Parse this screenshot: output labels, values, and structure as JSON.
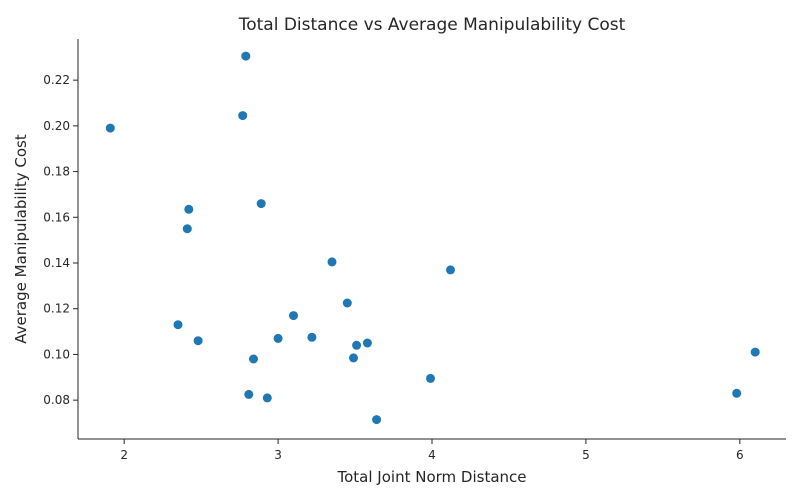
{
  "chart_data": {
    "type": "scatter",
    "title": "Total Distance vs Average Manipulability Cost",
    "xlabel": "Total Joint Norm Distance",
    "ylabel": "Average Manipulability Cost",
    "xlim": [
      1.7,
      6.3
    ],
    "ylim": [
      0.063,
      0.238
    ],
    "xticks": [
      2,
      3,
      4,
      5,
      6
    ],
    "xtick_labels": [
      "2",
      "3",
      "4",
      "5",
      "6"
    ],
    "yticks": [
      0.08,
      0.1,
      0.12,
      0.14,
      0.16,
      0.18,
      0.2,
      0.22
    ],
    "ytick_labels": [
      "0.08",
      "0.10",
      "0.12",
      "0.14",
      "0.16",
      "0.18",
      "0.20",
      "0.22"
    ],
    "grid": false,
    "point_color": "#1f77b4",
    "points": [
      {
        "x": 1.91,
        "y": 0.199
      },
      {
        "x": 2.79,
        "y": 0.2305
      },
      {
        "x": 2.77,
        "y": 0.2045
      },
      {
        "x": 2.89,
        "y": 0.166
      },
      {
        "x": 2.42,
        "y": 0.1635
      },
      {
        "x": 2.41,
        "y": 0.155
      },
      {
        "x": 2.35,
        "y": 0.113
      },
      {
        "x": 2.48,
        "y": 0.106
      },
      {
        "x": 3.35,
        "y": 0.1405
      },
      {
        "x": 4.12,
        "y": 0.137
      },
      {
        "x": 3.45,
        "y": 0.1225
      },
      {
        "x": 3.1,
        "y": 0.117
      },
      {
        "x": 3.0,
        "y": 0.107
      },
      {
        "x": 3.22,
        "y": 0.1075
      },
      {
        "x": 3.58,
        "y": 0.105
      },
      {
        "x": 3.51,
        "y": 0.104
      },
      {
        "x": 3.49,
        "y": 0.0985
      },
      {
        "x": 2.84,
        "y": 0.098
      },
      {
        "x": 3.99,
        "y": 0.0895
      },
      {
        "x": 2.81,
        "y": 0.0825
      },
      {
        "x": 2.93,
        "y": 0.081
      },
      {
        "x": 3.64,
        "y": 0.0715
      },
      {
        "x": 5.98,
        "y": 0.083
      },
      {
        "x": 6.1,
        "y": 0.101
      }
    ]
  }
}
